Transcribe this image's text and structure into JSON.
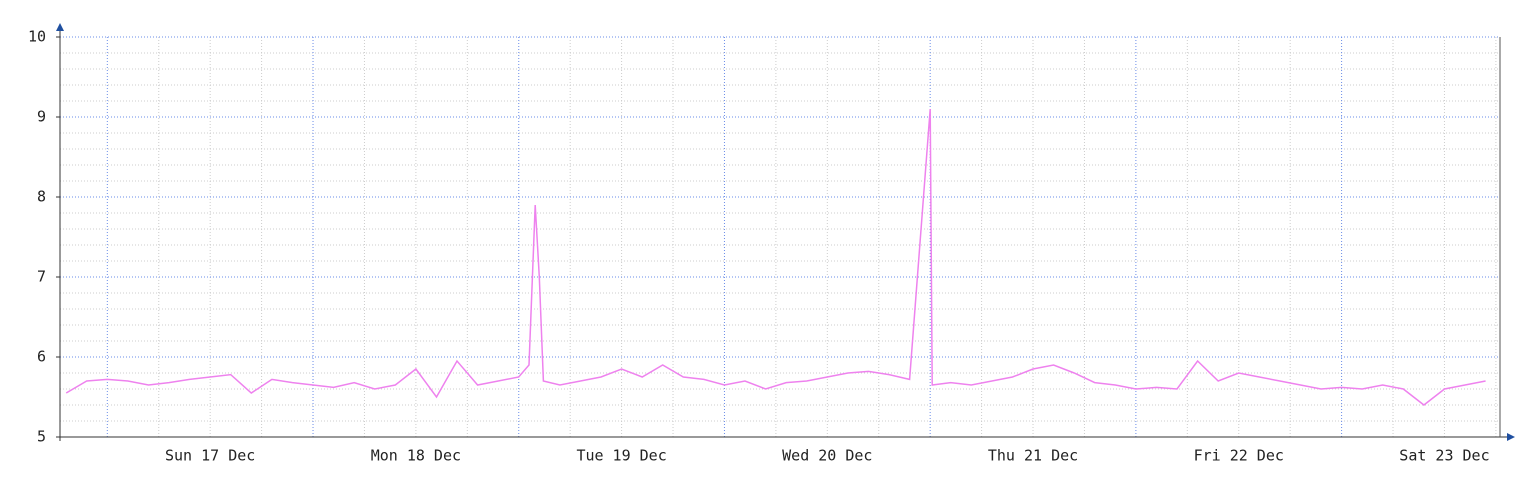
{
  "chart_data": {
    "type": "line",
    "x": [
      -0.2,
      -0.1,
      0,
      0.1,
      0.2,
      0.3,
      0.4,
      0.5,
      0.6,
      0.7,
      0.8,
      0.9,
      1.0,
      1.1,
      1.2,
      1.3,
      1.4,
      1.5,
      1.6,
      1.7,
      1.8,
      1.9,
      2.0,
      2.05,
      2.08,
      2.1,
      2.12,
      2.2,
      2.3,
      2.4,
      2.5,
      2.6,
      2.7,
      2.8,
      2.9,
      3.0,
      3.1,
      3.2,
      3.3,
      3.4,
      3.5,
      3.6,
      3.7,
      3.8,
      3.9,
      4.0,
      4.01,
      4.1,
      4.2,
      4.3,
      4.4,
      4.5,
      4.6,
      4.7,
      4.8,
      4.9,
      5.0,
      5.1,
      5.2,
      5.3,
      5.4,
      5.5,
      5.6,
      5.7,
      5.8,
      5.9,
      6.0,
      6.1,
      6.2,
      6.3,
      6.4,
      6.5,
      6.6,
      6.7
    ],
    "series": [
      {
        "color": "#ee82ee",
        "values": [
          5.55,
          5.7,
          5.72,
          5.7,
          5.65,
          5.68,
          5.72,
          5.75,
          5.78,
          5.55,
          5.72,
          5.68,
          5.65,
          5.62,
          5.68,
          5.6,
          5.65,
          5.85,
          5.5,
          5.95,
          5.65,
          5.7,
          5.75,
          5.9,
          7.9,
          7.0,
          5.7,
          5.65,
          5.7,
          5.75,
          5.85,
          5.75,
          5.9,
          5.75,
          5.72,
          5.65,
          5.7,
          5.6,
          5.68,
          5.7,
          5.75,
          5.8,
          5.82,
          5.78,
          5.72,
          9.1,
          5.65,
          5.68,
          5.65,
          5.7,
          5.75,
          5.85,
          5.9,
          5.8,
          5.68,
          5.65,
          5.6,
          5.62,
          5.6,
          5.95,
          5.7,
          5.8,
          5.75,
          5.7,
          5.65,
          5.6,
          5.62,
          5.6,
          5.65,
          5.6,
          5.4,
          5.6,
          5.65,
          5.7
        ]
      }
    ],
    "xlim": [
      -0.23,
      6.77
    ],
    "xticks": [
      {
        "value": 0.5,
        "label": "Sun 17 Dec"
      },
      {
        "value": 1.5,
        "label": "Mon 18 Dec"
      },
      {
        "value": 2.5,
        "label": "Tue 19 Dec"
      },
      {
        "value": 3.5,
        "label": "Wed 20 Dec"
      },
      {
        "value": 4.5,
        "label": "Thu 21 Dec"
      },
      {
        "value": 5.5,
        "label": "Fri 22 Dec"
      },
      {
        "value": 6.5,
        "label": "Sat 23 Dec"
      }
    ],
    "ylim": [
      5,
      10
    ],
    "yticks": [
      5,
      6,
      7,
      8,
      9,
      10
    ],
    "grid": true
  }
}
